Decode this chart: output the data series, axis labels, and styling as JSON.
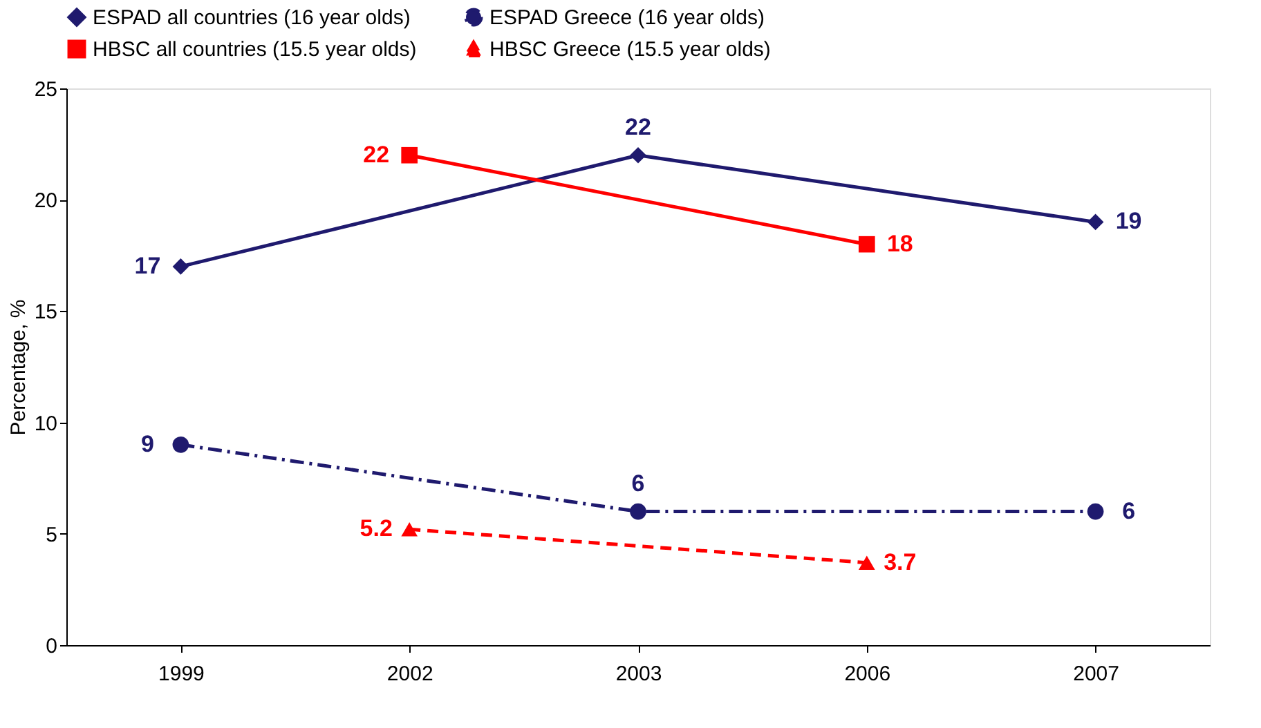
{
  "chart_data": {
    "type": "line",
    "ylabel": "Percentage, %",
    "categories": [
      "1999",
      "2002",
      "2003",
      "2006",
      "2007"
    ],
    "series": [
      {
        "name": "ESPAD all countries (16 year olds)",
        "color": "#1f1a6e",
        "marker": "diamond",
        "line_style": "solid",
        "values": [
          17,
          null,
          22,
          null,
          19
        ]
      },
      {
        "name": "ESPAD Greece (16 year olds)",
        "color": "#1f1a6e",
        "marker": "circle",
        "line_style": "dashdot",
        "values": [
          9,
          null,
          6,
          null,
          6
        ]
      },
      {
        "name": "HBSC all countries (15.5 year olds)",
        "color": "#ff0000",
        "marker": "square",
        "line_style": "solid",
        "values": [
          null,
          22,
          null,
          18,
          null
        ]
      },
      {
        "name": "HBSC Greece (15.5 year olds)",
        "color": "#ff0000",
        "marker": "triangle",
        "line_style": "dashed",
        "values": [
          null,
          5.2,
          null,
          3.7,
          null
        ]
      }
    ],
    "ylim": [
      0,
      25
    ],
    "yticks": [
      0,
      5,
      10,
      15,
      20,
      25
    ],
    "grid": false,
    "legend": "top",
    "data_labels": true
  }
}
